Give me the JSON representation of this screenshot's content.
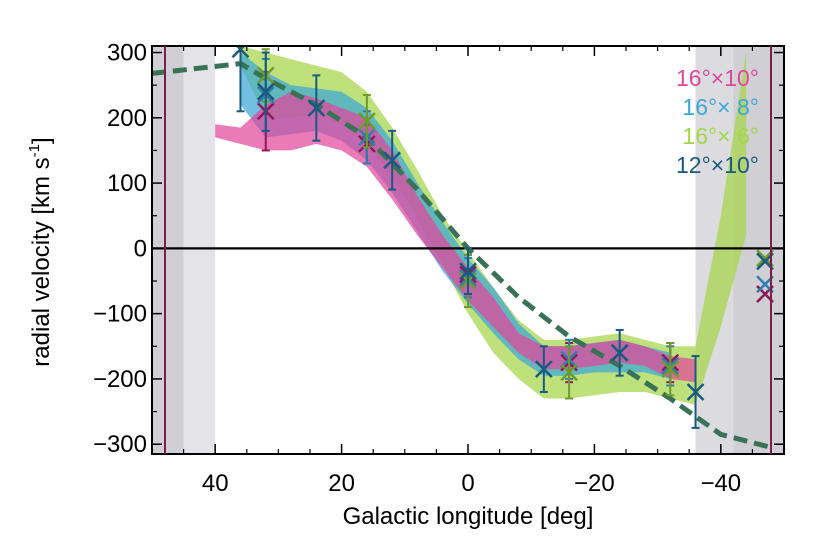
{
  "chart_data": {
    "type": "line",
    "title": "",
    "xlabel": "Galactic longitude [deg]",
    "ylabel": "radial velocity [km s",
    "ylabel_sup": "-1",
    "ylabel_close": "]",
    "xlim": [
      50,
      -50
    ],
    "ylim": [
      -315,
      310
    ],
    "xticks": [
      40,
      20,
      0,
      -20,
      -40
    ],
    "xtick_labels": [
      "40",
      "20",
      "0",
      "−20",
      "−40"
    ],
    "yticks": [
      300,
      200,
      100,
      0,
      -100,
      -200,
      -300
    ],
    "ytick_labels": [
      "300",
      "200",
      "100",
      "0",
      "−100",
      "−200",
      "−300"
    ],
    "legend_position": "top-right",
    "zero_line": 0,
    "series": [
      {
        "name": "16°×10°",
        "color": "#e2469c",
        "band_x": [
          40,
          36,
          32,
          28,
          24,
          20,
          16,
          12,
          8,
          4,
          0,
          -4,
          -8,
          -12,
          -16,
          -20,
          -24,
          -28,
          -32,
          -36
        ],
        "band_lo": [
          170,
          160,
          150,
          150,
          160,
          150,
          125,
          75,
          20,
          -30,
          -80,
          -120,
          -160,
          -185,
          -185,
          -180,
          -175,
          -180,
          -200,
          -205
        ],
        "band_hi": [
          190,
          185,
          220,
          240,
          230,
          215,
          200,
          150,
          80,
          20,
          -30,
          -75,
          -130,
          -150,
          -150,
          -145,
          -140,
          -150,
          -165,
          -170
        ],
        "points": [
          {
            "x": 32,
            "y": 210,
            "err": 60
          },
          {
            "x": 16,
            "y": 160,
            "err": 30
          },
          {
            "x": 0,
            "y": -40,
            "err": 30
          },
          {
            "x": -16,
            "y": -175,
            "err": 30
          },
          {
            "x": -32,
            "y": -175,
            "err": 30
          },
          {
            "x": -47,
            "y": -70,
            "err": 0
          }
        ]
      },
      {
        "name": "16°× 8°",
        "color": "#3ca6d6",
        "band_x": [
          36,
          32,
          28,
          24,
          20,
          16,
          12,
          8,
          4,
          0,
          -4,
          -8,
          -12,
          -16,
          -20,
          -24,
          -28,
          -32
        ],
        "band_lo": [
          220,
          170,
          175,
          180,
          165,
          135,
          85,
          25,
          -35,
          -85,
          -130,
          -170,
          -195,
          -195,
          -190,
          -190,
          -190,
          -200
        ],
        "band_hi": [
          300,
          270,
          250,
          245,
          240,
          215,
          165,
          100,
          40,
          -15,
          -60,
          -115,
          -150,
          -150,
          -145,
          -140,
          -150,
          -160
        ],
        "points": [
          {
            "x": 32,
            "y": 235,
            "err": 55
          },
          {
            "x": 16,
            "y": 170,
            "err": 40
          },
          {
            "x": 0,
            "y": -45,
            "err": 30
          },
          {
            "x": -16,
            "y": -170,
            "err": 30
          },
          {
            "x": -32,
            "y": -180,
            "err": 30
          },
          {
            "x": -47,
            "y": -55,
            "err": 0
          }
        ]
      },
      {
        "name": "16°× 6°",
        "color": "#a5d64a",
        "band_x": [
          36,
          32,
          28,
          24,
          20,
          16,
          12,
          8,
          4,
          0,
          -4,
          -8,
          -12,
          -16,
          -20,
          -24,
          -28,
          -32,
          -36,
          -40,
          -44
        ],
        "band_lo": [
          280,
          200,
          200,
          205,
          190,
          160,
          110,
          45,
          -25,
          -100,
          -160,
          -200,
          -230,
          -230,
          -225,
          -220,
          -220,
          -230,
          -240,
          -120,
          20
        ],
        "band_hi": [
          310,
          300,
          290,
          280,
          270,
          240,
          185,
          120,
          50,
          -5,
          -60,
          -110,
          -140,
          -140,
          -135,
          -130,
          -140,
          -150,
          -150,
          50,
          300
        ],
        "points": [
          {
            "x": 32,
            "y": 265,
            "err": 40
          },
          {
            "x": 16,
            "y": 195,
            "err": 40
          },
          {
            "x": 0,
            "y": -50,
            "err": 40
          },
          {
            "x": -16,
            "y": -190,
            "err": 40
          },
          {
            "x": -32,
            "y": -185,
            "err": 40
          },
          {
            "x": -47,
            "y": -15,
            "err": 0
          }
        ]
      },
      {
        "name": "12°×10°",
        "color": "#1a5a7e",
        "band_x": [],
        "band_lo": [],
        "band_hi": [],
        "points": [
          {
            "x": 36,
            "y": 305,
            "err": 95
          },
          {
            "x": 32,
            "y": 240,
            "err": 60
          },
          {
            "x": 24,
            "y": 215,
            "err": 50
          },
          {
            "x": 12,
            "y": 135,
            "err": 45
          },
          {
            "x": 0,
            "y": -35,
            "err": 35
          },
          {
            "x": -12,
            "y": -185,
            "err": 35
          },
          {
            "x": -24,
            "y": -160,
            "err": 35
          },
          {
            "x": -36,
            "y": -220,
            "err": 55
          },
          {
            "x": -47,
            "y": -20,
            "err": 0
          }
        ]
      }
    ],
    "model_curve": {
      "style": "dashed",
      "color": "#3a7258",
      "x": [
        50,
        36,
        32,
        24,
        16,
        8,
        0,
        -8,
        -16,
        -24,
        -32,
        -40,
        -48
      ],
      "y": [
        268,
        283,
        260,
        220,
        170,
        90,
        0,
        -75,
        -135,
        -180,
        -230,
        -285,
        -305
      ]
    },
    "shaded_regions": [
      {
        "x0": 50,
        "x1": 45,
        "color": "#cfcfd4"
      },
      {
        "x0": 45,
        "x1": 40,
        "color": "#e4e4e8"
      },
      {
        "x0": -36,
        "x1": -42,
        "color": "#dcdce0"
      },
      {
        "x0": -42,
        "x1": -50,
        "color": "#cfcfd4"
      }
    ]
  }
}
